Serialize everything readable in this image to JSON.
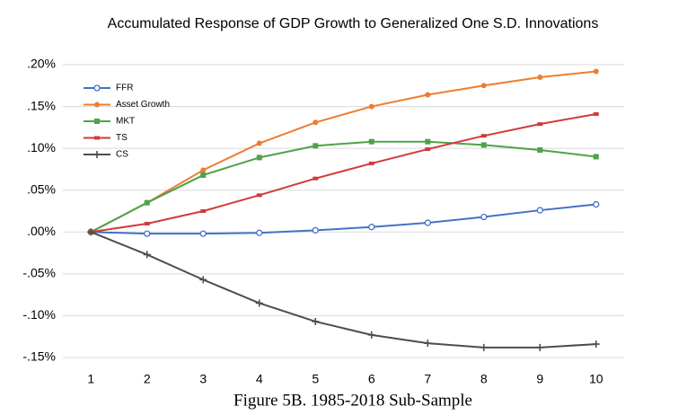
{
  "chart_data": {
    "type": "line",
    "title": "Accumulated Response of GDP Growth to Generalized One S.D. Innovations",
    "caption": "Figure 5B. 1985-2018 Sub-Sample",
    "categories": [
      "1",
      "2",
      "3",
      "4",
      "5",
      "6",
      "7",
      "8",
      "9",
      "10"
    ],
    "ylim": [
      -0.15,
      0.2
    ],
    "yticks": [
      {
        "value": -0.15,
        "label": "-.15%"
      },
      {
        "value": -0.1,
        "label": "-.10%"
      },
      {
        "value": -0.05,
        "label": "-.05%"
      },
      {
        "value": 0,
        "label": ".00%"
      },
      {
        "value": 0.05,
        "label": ".05%"
      },
      {
        "value": 0.1,
        "label": ".10%"
      },
      {
        "value": 0.15,
        "label": ".15%"
      },
      {
        "value": 0.2,
        "label": ".20%"
      }
    ],
    "grid": true,
    "legend": "top-left",
    "series": [
      {
        "name": "FFR",
        "color": "#4472c4",
        "marker": "open-circle",
        "values": [
          0,
          -0.002,
          -0.002,
          -0.001,
          0.002,
          0.006,
          0.011,
          0.018,
          0.026,
          0.033
        ]
      },
      {
        "name": "Asset Growth",
        "color": "#ed7d31",
        "marker": "circle",
        "values": [
          0,
          0.035,
          0.074,
          0.106,
          0.131,
          0.15,
          0.164,
          0.175,
          0.185,
          0.192
        ]
      },
      {
        "name": "MKT",
        "color": "#4ea24a",
        "marker": "square",
        "values": [
          0,
          0.035,
          0.068,
          0.089,
          0.103,
          0.108,
          0.108,
          0.104,
          0.098,
          0.09
        ]
      },
      {
        "name": "TS",
        "color": "#d13a3a",
        "marker": "dash",
        "values": [
          0,
          0.01,
          0.025,
          0.044,
          0.064,
          0.082,
          0.099,
          0.115,
          0.129,
          0.141
        ]
      },
      {
        "name": "CS",
        "color": "#4d4d4d",
        "marker": "plus",
        "values": [
          0,
          -0.027,
          -0.057,
          -0.085,
          -0.107,
          -0.123,
          -0.133,
          -0.138,
          -0.138,
          -0.134
        ]
      }
    ]
  }
}
